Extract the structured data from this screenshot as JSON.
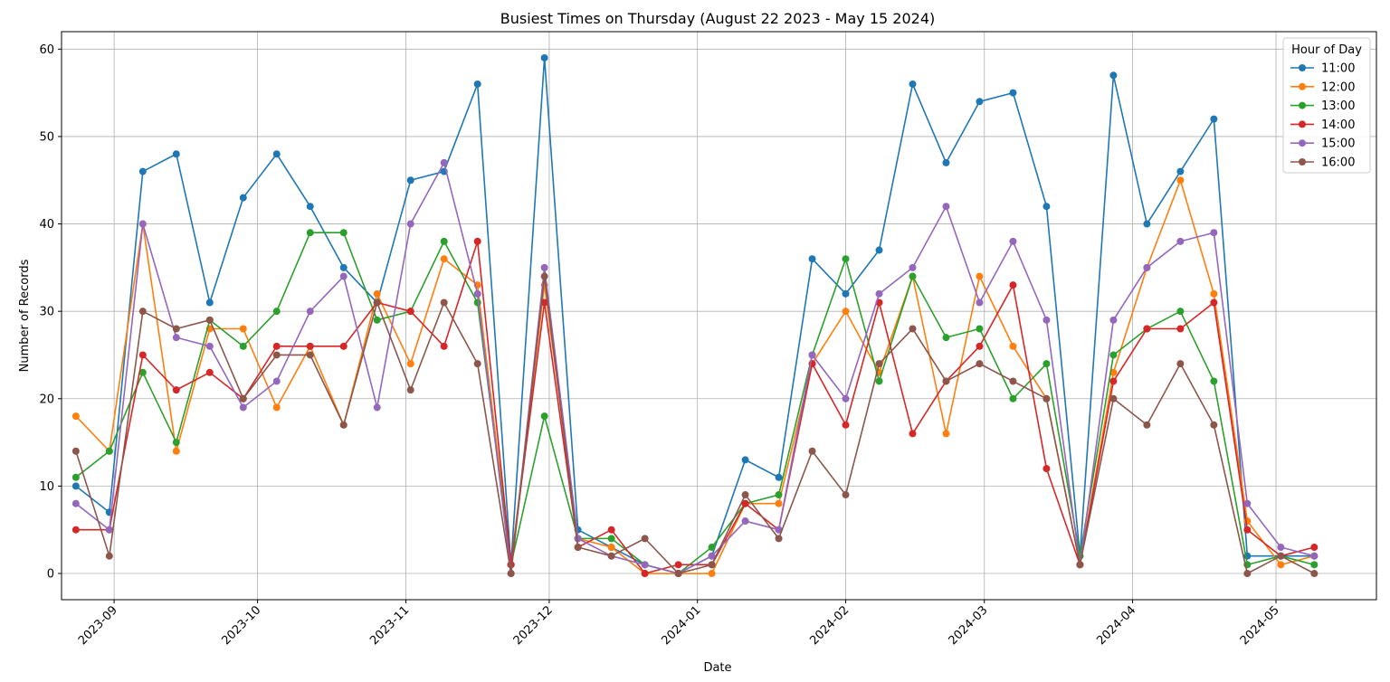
{
  "chart_data": {
    "type": "line",
    "title": "Busiest Times on Thursday (August 22 2023 - May 15 2024)",
    "xlabel": "Date",
    "ylabel": "Number of Records",
    "xlim": [
      "2023-08-21",
      "2024-05-22"
    ],
    "ylim": [
      -3,
      62
    ],
    "grid": true,
    "x_ticks": [
      "2023-09-01",
      "2023-10-01",
      "2023-11-01",
      "2023-12-01",
      "2024-01-01",
      "2024-02-01",
      "2024-03-01",
      "2024-04-01",
      "2024-05-01"
    ],
    "x_tick_labels": [
      "2023-09",
      "2023-10",
      "2023-11",
      "2023-12",
      "2024-01",
      "2024-02",
      "2024-03",
      "2024-04",
      "2024-05"
    ],
    "y_ticks": [
      0,
      10,
      20,
      30,
      40,
      50,
      60
    ],
    "legend": {
      "title": "Hour of Day",
      "position": "top-right"
    },
    "x": [
      "2023-08-24",
      "2023-08-31",
      "2023-09-07",
      "2023-09-14",
      "2023-09-21",
      "2023-09-28",
      "2023-10-05",
      "2023-10-12",
      "2023-10-19",
      "2023-10-26",
      "2023-11-02",
      "2023-11-09",
      "2023-11-16",
      "2023-11-23",
      "2023-11-30",
      "2023-12-07",
      "2023-12-14",
      "2023-12-21",
      "2023-12-28",
      "2024-01-04",
      "2024-01-11",
      "2024-01-18",
      "2024-01-25",
      "2024-02-01",
      "2024-02-08",
      "2024-02-15",
      "2024-02-22",
      "2024-02-29",
      "2024-03-07",
      "2024-03-14",
      "2024-03-21",
      "2024-03-28",
      "2024-04-04",
      "2024-04-11",
      "2024-04-18",
      "2024-04-25",
      "2024-05-02",
      "2024-05-09"
    ],
    "series": [
      {
        "name": "11:00",
        "color": "#1f77b4",
        "values": [
          10,
          7,
          46,
          48,
          31,
          43,
          48,
          42,
          35,
          31,
          45,
          46,
          56,
          1,
          59,
          5,
          3,
          1,
          0,
          2,
          13,
          11,
          36,
          32,
          37,
          56,
          47,
          54,
          55,
          42,
          2,
          57,
          40,
          46,
          52,
          2,
          2,
          2
        ]
      },
      {
        "name": "12:00",
        "color": "#ff7f0e",
        "values": [
          18,
          14,
          40,
          14,
          28,
          28,
          19,
          26,
          17,
          32,
          24,
          36,
          33,
          1,
          33,
          4,
          3,
          0,
          0,
          0,
          8,
          8,
          24,
          30,
          23,
          34,
          16,
          34,
          26,
          20,
          1,
          23,
          35,
          45,
          32,
          6,
          1,
          2
        ]
      },
      {
        "name": "13:00",
        "color": "#2ca02c",
        "values": [
          11,
          14,
          23,
          15,
          29,
          26,
          30,
          39,
          39,
          29,
          30,
          38,
          31,
          1,
          18,
          4,
          4,
          1,
          0,
          3,
          8,
          9,
          25,
          36,
          22,
          34,
          27,
          28,
          20,
          24,
          2,
          25,
          28,
          30,
          22,
          1,
          2,
          1
        ]
      },
      {
        "name": "14:00",
        "color": "#d62728",
        "values": [
          5,
          5,
          25,
          21,
          23,
          20,
          26,
          26,
          26,
          31,
          30,
          26,
          38,
          1,
          31,
          3,
          5,
          0,
          1,
          1,
          8,
          5,
          24,
          17,
          31,
          16,
          22,
          26,
          33,
          12,
          1,
          22,
          28,
          28,
          31,
          5,
          2,
          3
        ]
      },
      {
        "name": "15:00",
        "color": "#9467bd",
        "values": [
          8,
          5,
          40,
          27,
          26,
          19,
          22,
          30,
          34,
          19,
          40,
          47,
          32,
          0,
          35,
          4,
          2,
          1,
          0,
          2,
          6,
          5,
          25,
          20,
          32,
          35,
          42,
          31,
          38,
          29,
          1,
          29,
          35,
          38,
          39,
          8,
          3,
          2
        ]
      },
      {
        "name": "16:00",
        "color": "#8c564b",
        "values": [
          14,
          2,
          30,
          28,
          29,
          20,
          25,
          25,
          17,
          31,
          21,
          31,
          24,
          0,
          34,
          3,
          2,
          4,
          0,
          1,
          9,
          4,
          14,
          9,
          24,
          28,
          22,
          24,
          22,
          20,
          1,
          20,
          17,
          24,
          17,
          0,
          2,
          0
        ]
      }
    ]
  }
}
